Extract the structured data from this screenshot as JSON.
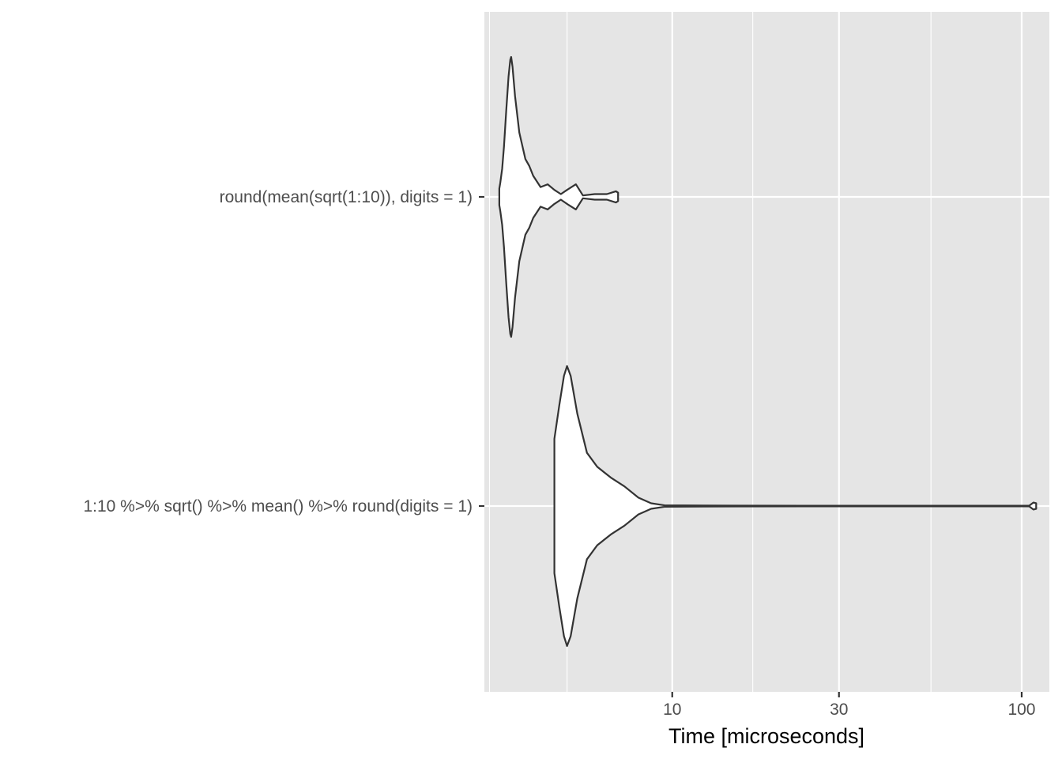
{
  "chart_data": {
    "type": "violin",
    "orientation": "horizontal",
    "xlabel": "Time [microseconds]",
    "ylabel": "",
    "x_scale": "log10",
    "xlim": [
      2.9,
      120
    ],
    "x_ticks": [
      10,
      30,
      100
    ],
    "x_tick_labels": [
      "10",
      "30",
      "100"
    ],
    "grid": true,
    "legend": "none",
    "categories": [
      "round(mean(sqrt(1:10)), digits = 1)",
      "1:10 %>% sqrt() %>% mean() %>% round(digits = 1)"
    ],
    "series": [
      {
        "category": "round(mean(sqrt(1:10)), digits = 1)",
        "min": 3.2,
        "max": 7.0,
        "density_profile": [
          [
            3.2,
            0.06
          ],
          [
            3.22,
            0.1
          ],
          [
            3.26,
            0.2
          ],
          [
            3.3,
            0.36
          ],
          [
            3.35,
            0.62
          ],
          [
            3.4,
            0.86
          ],
          [
            3.44,
            0.98
          ],
          [
            3.46,
            1.0
          ],
          [
            3.49,
            0.93
          ],
          [
            3.55,
            0.72
          ],
          [
            3.65,
            0.46
          ],
          [
            3.8,
            0.27
          ],
          [
            3.9,
            0.22
          ],
          [
            4.0,
            0.15
          ],
          [
            4.2,
            0.07
          ],
          [
            4.4,
            0.09
          ],
          [
            4.6,
            0.05
          ],
          [
            4.8,
            0.02
          ],
          [
            5.0,
            0.05
          ],
          [
            5.3,
            0.09
          ],
          [
            5.55,
            0.01
          ],
          [
            6.0,
            0.02
          ],
          [
            6.5,
            0.02
          ],
          [
            6.9,
            0.04
          ],
          [
            7.0,
            0.03
          ]
        ]
      },
      {
        "category": "1:10 %>% sqrt() %>% mean() %>% round(digits = 1)",
        "min": 4.6,
        "max": 110,
        "density_profile": [
          [
            4.6,
            0.48
          ],
          [
            4.75,
            0.72
          ],
          [
            4.9,
            0.93
          ],
          [
            5.0,
            1.0
          ],
          [
            5.12,
            0.93
          ],
          [
            5.35,
            0.66
          ],
          [
            5.7,
            0.38
          ],
          [
            6.1,
            0.28
          ],
          [
            6.7,
            0.2
          ],
          [
            7.3,
            0.14
          ],
          [
            8.0,
            0.06
          ],
          [
            8.7,
            0.02
          ],
          [
            9.5,
            0.005
          ],
          [
            15,
            0.003
          ],
          [
            40,
            0.002
          ],
          [
            105,
            0.002
          ],
          [
            108,
            0.025
          ],
          [
            110,
            0.02
          ]
        ]
      }
    ]
  }
}
